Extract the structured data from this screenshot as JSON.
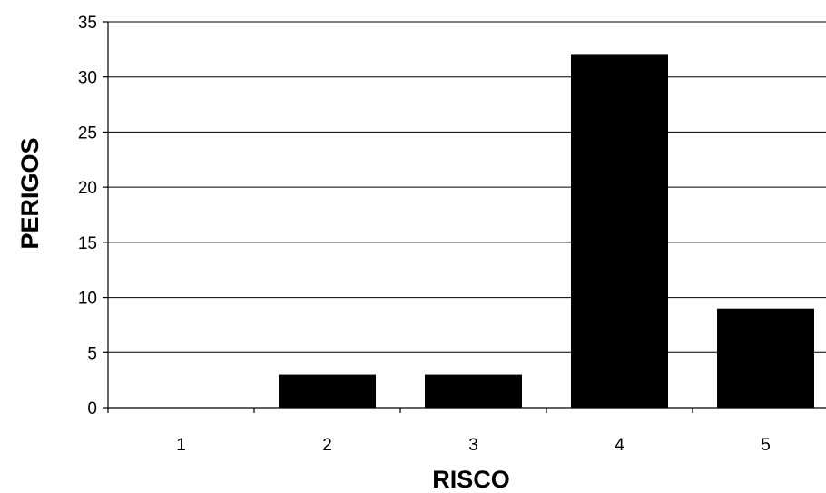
{
  "chart_data": {
    "type": "bar",
    "categories": [
      "1",
      "2",
      "3",
      "4",
      "5"
    ],
    "values": [
      0,
      3,
      3,
      32,
      9
    ],
    "title": "",
    "xlabel": "RISCO",
    "ylabel": "PERIGOS",
    "ylim": [
      0,
      35
    ],
    "yticks": [
      "0",
      "5",
      "10",
      "15",
      "20",
      "25",
      "30",
      "35"
    ],
    "grid": true,
    "legend": "none",
    "bar_color": "#000000"
  }
}
